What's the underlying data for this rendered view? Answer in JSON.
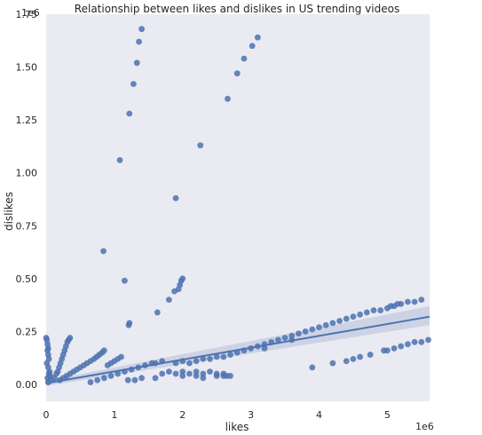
{
  "chart_data": {
    "type": "scatter",
    "title": "Relationship between likes and dislikes in US trending videos",
    "xlabel": "likes",
    "ylabel": "dislikes",
    "x_offset_label": "1e6",
    "y_offset_label": "1e6",
    "xlim": [
      0,
      5.62
    ],
    "ylim": [
      -0.08,
      1.75
    ],
    "x_ticks": [
      0,
      1,
      2,
      3,
      4,
      5
    ],
    "x_tick_labels": [
      "0",
      "1",
      "2",
      "3",
      "4",
      "5"
    ],
    "y_ticks": [
      0.0,
      0.25,
      0.5,
      0.75,
      1.0,
      1.25,
      1.5,
      1.75
    ],
    "y_tick_labels": [
      "0.00",
      "0.25",
      "0.50",
      "0.75",
      "1.00",
      "1.25",
      "1.50",
      "1.75"
    ],
    "grid": false,
    "colors": {
      "background": "#eaeaf2",
      "points": "#4c72b0",
      "regression": "#4c72b0",
      "ci_band": "#c5cde0"
    },
    "regression": {
      "x": [
        0,
        5.62
      ],
      "y": [
        0.005,
        0.32
      ],
      "ci_upper_end": 0.37,
      "ci_lower_end": 0.28
    },
    "points": [
      [
        1.4,
        1.68
      ],
      [
        1.36,
        1.62
      ],
      [
        1.33,
        1.52
      ],
      [
        1.28,
        1.42
      ],
      [
        1.22,
        1.28
      ],
      [
        1.08,
        1.06
      ],
      [
        3.1,
        1.64
      ],
      [
        3.02,
        1.6
      ],
      [
        2.9,
        1.54
      ],
      [
        2.8,
        1.47
      ],
      [
        2.66,
        1.35
      ],
      [
        2.26,
        1.13
      ],
      [
        1.9,
        0.88
      ],
      [
        0.84,
        0.63
      ],
      [
        1.15,
        0.49
      ],
      [
        2.0,
        0.5
      ],
      [
        1.98,
        0.49
      ],
      [
        1.96,
        0.47
      ],
      [
        1.94,
        0.45
      ],
      [
        1.88,
        0.44
      ],
      [
        1.8,
        0.4
      ],
      [
        1.63,
        0.34
      ],
      [
        1.22,
        0.29
      ],
      [
        1.21,
        0.28
      ],
      [
        0.0,
        0.22
      ],
      [
        0.01,
        0.21
      ],
      [
        0.02,
        0.19
      ],
      [
        0.03,
        0.17
      ],
      [
        0.02,
        0.16
      ],
      [
        0.03,
        0.14
      ],
      [
        0.04,
        0.12
      ],
      [
        0.01,
        0.1
      ],
      [
        0.03,
        0.08
      ],
      [
        0.05,
        0.06
      ],
      [
        0.04,
        0.05
      ],
      [
        0.06,
        0.04
      ],
      [
        0.02,
        0.03
      ],
      [
        0.07,
        0.02
      ],
      [
        0.03,
        0.01
      ],
      [
        0.35,
        0.22
      ],
      [
        0.33,
        0.21
      ],
      [
        0.31,
        0.2
      ],
      [
        0.29,
        0.18
      ],
      [
        0.27,
        0.16
      ],
      [
        0.25,
        0.14
      ],
      [
        0.23,
        0.12
      ],
      [
        0.21,
        0.1
      ],
      [
        0.19,
        0.08
      ],
      [
        0.17,
        0.06
      ],
      [
        0.15,
        0.05
      ],
      [
        0.12,
        0.03
      ],
      [
        0.85,
        0.16
      ],
      [
        0.82,
        0.15
      ],
      [
        0.78,
        0.14
      ],
      [
        0.74,
        0.13
      ],
      [
        0.7,
        0.12
      ],
      [
        0.65,
        0.11
      ],
      [
        0.6,
        0.1
      ],
      [
        0.55,
        0.09
      ],
      [
        0.5,
        0.08
      ],
      [
        0.45,
        0.07
      ],
      [
        0.4,
        0.06
      ],
      [
        0.35,
        0.05
      ],
      [
        0.3,
        0.04
      ],
      [
        0.25,
        0.03
      ],
      [
        0.2,
        0.02
      ],
      [
        1.55,
        0.1
      ],
      [
        1.45,
        0.09
      ],
      [
        1.35,
        0.08
      ],
      [
        1.25,
        0.07
      ],
      [
        1.15,
        0.06
      ],
      [
        1.05,
        0.05
      ],
      [
        0.95,
        0.04
      ],
      [
        0.85,
        0.03
      ],
      [
        0.75,
        0.02
      ],
      [
        0.65,
        0.01
      ],
      [
        1.1,
        0.13
      ],
      [
        1.05,
        0.12
      ],
      [
        1.0,
        0.11
      ],
      [
        0.95,
        0.1
      ],
      [
        0.9,
        0.09
      ],
      [
        1.6,
        0.1
      ],
      [
        1.7,
        0.11
      ],
      [
        1.9,
        0.1
      ],
      [
        2.0,
        0.11
      ],
      [
        2.1,
        0.1
      ],
      [
        2.2,
        0.11
      ],
      [
        2.3,
        0.12
      ],
      [
        2.4,
        0.12
      ],
      [
        2.5,
        0.13
      ],
      [
        2.6,
        0.13
      ],
      [
        2.7,
        0.14
      ],
      [
        2.8,
        0.15
      ],
      [
        2.9,
        0.16
      ],
      [
        3.0,
        0.17
      ],
      [
        3.1,
        0.18
      ],
      [
        3.2,
        0.19
      ],
      [
        3.3,
        0.2
      ],
      [
        3.4,
        0.21
      ],
      [
        3.5,
        0.22
      ],
      [
        3.6,
        0.23
      ],
      [
        3.2,
        0.17
      ],
      [
        3.6,
        0.21
      ],
      [
        3.7,
        0.24
      ],
      [
        3.8,
        0.25
      ],
      [
        3.9,
        0.26
      ],
      [
        4.0,
        0.27
      ],
      [
        4.1,
        0.28
      ],
      [
        4.2,
        0.29
      ],
      [
        4.3,
        0.3
      ],
      [
        4.4,
        0.31
      ],
      [
        4.5,
        0.32
      ],
      [
        4.6,
        0.33
      ],
      [
        4.7,
        0.34
      ],
      [
        4.8,
        0.35
      ],
      [
        4.9,
        0.35
      ],
      [
        5.0,
        0.36
      ],
      [
        5.05,
        0.37
      ],
      [
        5.1,
        0.37
      ],
      [
        5.15,
        0.38
      ],
      [
        5.2,
        0.38
      ],
      [
        5.3,
        0.39
      ],
      [
        5.4,
        0.39
      ],
      [
        5.5,
        0.4
      ],
      [
        1.7,
        0.05
      ],
      [
        1.8,
        0.06
      ],
      [
        1.9,
        0.05
      ],
      [
        2.0,
        0.06
      ],
      [
        2.1,
        0.05
      ],
      [
        2.2,
        0.06
      ],
      [
        2.3,
        0.05
      ],
      [
        2.4,
        0.06
      ],
      [
        2.5,
        0.05
      ],
      [
        2.6,
        0.05
      ],
      [
        2.65,
        0.04
      ],
      [
        2.7,
        0.04
      ],
      [
        2.2,
        0.04
      ],
      [
        2.3,
        0.03
      ],
      [
        2.5,
        0.04
      ],
      [
        2.6,
        0.04
      ],
      [
        2.0,
        0.04
      ],
      [
        1.6,
        0.03
      ],
      [
        1.4,
        0.03
      ],
      [
        1.3,
        0.02
      ],
      [
        1.2,
        0.02
      ],
      [
        3.9,
        0.08
      ],
      [
        4.5,
        0.12
      ],
      [
        4.75,
        0.14
      ],
      [
        4.95,
        0.16
      ],
      [
        5.1,
        0.17
      ],
      [
        5.2,
        0.18
      ],
      [
        5.3,
        0.19
      ],
      [
        5.4,
        0.2
      ],
      [
        5.5,
        0.2
      ],
      [
        5.6,
        0.21
      ],
      [
        5.0,
        0.16
      ],
      [
        4.6,
        0.13
      ],
      [
        4.4,
        0.11
      ],
      [
        4.2,
        0.1
      ]
    ]
  }
}
